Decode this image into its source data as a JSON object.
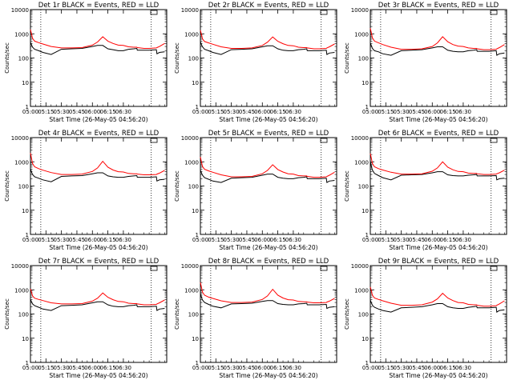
{
  "colors": {
    "events": "#000000",
    "lld": "#ff0000",
    "background": "#ffffff"
  },
  "chart_data": [
    {
      "type": "line",
      "title": "Det 1r BLACK = Events, RED = LLD",
      "xlabel": "Start Time (26-May-05 04:56:20)",
      "ylabel": "Counts/sec",
      "x_ticks": [
        "05:00",
        "05:15",
        "05:30",
        "05:45",
        "06:00",
        "06:15",
        "06:30"
      ],
      "y_ticks": [
        "1",
        "10",
        "100",
        "1000",
        "10000"
      ],
      "ylim": [
        1,
        10000
      ],
      "yscale": "log",
      "x_minutes": [
        0,
        1,
        2,
        4,
        8,
        12,
        20,
        30,
        40,
        50,
        60,
        65,
        70,
        75,
        80,
        85,
        90,
        95,
        100,
        103,
        103.5,
        110,
        115,
        122,
        122.5,
        125,
        130
      ],
      "series": [
        {
          "name": "BLACK = Events",
          "values": [
            450,
            350,
            280,
            230,
            200,
            170,
            140,
            230,
            240,
            250,
            300,
            330,
            330,
            240,
            220,
            200,
            200,
            230,
            240,
            250,
            210,
            210,
            210,
            220,
            150,
            170,
            180
          ]
        },
        {
          "name": "RED = LLD",
          "values": [
            1500,
            1000,
            650,
            500,
            430,
            380,
            300,
            260,
            260,
            270,
            340,
            460,
            760,
            500,
            400,
            340,
            330,
            290,
            280,
            280,
            270,
            250,
            250,
            260,
            270,
            300,
            400
          ]
        }
      ]
    },
    {
      "type": "line",
      "title": "Det 2r BLACK = Events, RED = LLD",
      "xlabel": "Start Time (26-May-05 04:56:20)",
      "ylabel": "Counts/sec",
      "x_ticks": [
        "05:00",
        "05:15",
        "05:30",
        "05:45",
        "06:00",
        "06:15",
        "06:30"
      ],
      "y_ticks": [
        "1",
        "10",
        "100",
        "1000",
        "10000"
      ],
      "ylim": [
        1,
        10000
      ],
      "yscale": "log",
      "x_minutes": [
        0,
        1,
        2,
        4,
        8,
        12,
        20,
        30,
        40,
        50,
        60,
        65,
        70,
        75,
        80,
        85,
        90,
        95,
        100,
        103,
        103.5,
        110,
        115,
        122,
        122.5,
        125,
        130
      ],
      "series": [
        {
          "name": "BLACK = Events",
          "values": [
            480,
            360,
            290,
            230,
            200,
            170,
            140,
            220,
            230,
            240,
            290,
            320,
            320,
            240,
            210,
            200,
            200,
            220,
            230,
            240,
            200,
            200,
            200,
            210,
            140,
            160,
            170
          ]
        },
        {
          "name": "RED = LLD",
          "values": [
            1400,
            950,
            620,
            480,
            420,
            370,
            290,
            250,
            250,
            260,
            330,
            450,
            740,
            490,
            390,
            330,
            320,
            280,
            270,
            270,
            260,
            240,
            240,
            250,
            260,
            290,
            380
          ]
        }
      ]
    },
    {
      "type": "line",
      "title": "Det 3r BLACK = Events, RED = LLD",
      "xlabel": "Start Time (26-May-05 04:56:20)",
      "ylabel": "Counts/sec",
      "x_ticks": [
        "05:00",
        "05:15",
        "05:30",
        "05:45",
        "06:00",
        "06:15",
        "06:30"
      ],
      "y_ticks": [
        "1",
        "10",
        "100",
        "1000",
        "10000"
      ],
      "ylim": [
        1,
        10000
      ],
      "yscale": "log",
      "x_minutes": [
        0,
        1,
        2,
        4,
        8,
        12,
        20,
        30,
        40,
        50,
        60,
        65,
        70,
        75,
        80,
        85,
        90,
        95,
        100,
        103,
        103.5,
        110,
        115,
        122,
        122.5,
        125,
        130
      ],
      "series": [
        {
          "name": "BLACK = Events",
          "values": [
            420,
            320,
            250,
            200,
            180,
            150,
            130,
            200,
            210,
            220,
            260,
            290,
            290,
            210,
            190,
            180,
            180,
            200,
            210,
            220,
            190,
            190,
            190,
            200,
            130,
            150,
            160
          ]
        },
        {
          "name": "RED = LLD",
          "values": [
            1700,
            1100,
            680,
            500,
            420,
            360,
            280,
            230,
            230,
            240,
            300,
            420,
            760,
            470,
            360,
            310,
            300,
            260,
            250,
            250,
            240,
            220,
            220,
            230,
            240,
            270,
            360
          ]
        }
      ]
    },
    {
      "type": "line",
      "title": "Det 4r BLACK = Events, RED = LLD",
      "xlabel": "Start Time (26-May-05 04:56:20)",
      "ylabel": "Counts/sec",
      "x_ticks": [
        "05:00",
        "05:15",
        "05:30",
        "05:45",
        "06:00",
        "06:15",
        "06:30"
      ],
      "y_ticks": [
        "1",
        "10",
        "100",
        "1000",
        "10000"
      ],
      "ylim": [
        1,
        10000
      ],
      "yscale": "log",
      "x_minutes": [
        0,
        1,
        2,
        4,
        8,
        12,
        20,
        30,
        40,
        50,
        60,
        65,
        70,
        75,
        80,
        85,
        90,
        95,
        100,
        103,
        103.5,
        110,
        115,
        122,
        122.5,
        125,
        130
      ],
      "series": [
        {
          "name": "BLACK = Events",
          "values": [
            520,
            380,
            300,
            240,
            210,
            180,
            150,
            250,
            260,
            270,
            320,
            350,
            350,
            260,
            240,
            230,
            230,
            250,
            260,
            270,
            230,
            230,
            230,
            240,
            160,
            180,
            190
          ]
        },
        {
          "name": "RED = LLD",
          "values": [
            2300,
            1400,
            850,
            620,
            520,
            450,
            360,
            300,
            300,
            310,
            400,
            560,
            1050,
            600,
            460,
            390,
            380,
            330,
            320,
            320,
            310,
            290,
            290,
            300,
            310,
            340,
            440
          ]
        }
      ]
    },
    {
      "type": "line",
      "title": "Det 5r BLACK = Events, RED = LLD",
      "xlabel": "Start Time (26-May-05 04:56:20)",
      "ylabel": "Counts/sec",
      "x_ticks": [
        "05:00",
        "05:15",
        "05:30",
        "05:45",
        "06:00",
        "06:15",
        "06:30"
      ],
      "y_ticks": [
        "1",
        "10",
        "100",
        "1000",
        "10000"
      ],
      "ylim": [
        1,
        10000
      ],
      "yscale": "log",
      "x_minutes": [
        0,
        1,
        2,
        4,
        8,
        12,
        20,
        30,
        40,
        50,
        60,
        65,
        70,
        75,
        80,
        85,
        90,
        95,
        100,
        103,
        103.5,
        110,
        115,
        122,
        122.5,
        125,
        130
      ],
      "series": [
        {
          "name": "BLACK = Events",
          "values": [
            460,
            350,
            280,
            220,
            190,
            160,
            140,
            210,
            220,
            230,
            280,
            310,
            310,
            230,
            210,
            200,
            200,
            220,
            230,
            240,
            200,
            200,
            200,
            210,
            140,
            160,
            170
          ]
        },
        {
          "name": "RED = LLD",
          "values": [
            1600,
            1000,
            640,
            490,
            420,
            370,
            290,
            240,
            240,
            250,
            320,
            440,
            760,
            480,
            380,
            320,
            310,
            270,
            260,
            260,
            250,
            230,
            230,
            240,
            250,
            280,
            370
          ]
        }
      ]
    },
    {
      "type": "line",
      "title": "Det 6r BLACK = Events, RED = LLD",
      "xlabel": "Start Time (26-May-05 04:56:20)",
      "ylabel": "Counts/sec",
      "x_ticks": [
        "05:00",
        "05:15",
        "05:30",
        "05:45",
        "06:00",
        "06:15",
        "06:30"
      ],
      "y_ticks": [
        "1",
        "10",
        "100",
        "1000",
        "10000"
      ],
      "ylim": [
        1,
        10000
      ],
      "yscale": "log",
      "x_minutes": [
        0,
        1,
        2,
        4,
        8,
        12,
        20,
        30,
        40,
        50,
        60,
        65,
        70,
        75,
        80,
        85,
        90,
        95,
        100,
        103,
        103.5,
        110,
        115,
        122,
        122.5,
        125,
        130
      ],
      "series": [
        {
          "name": "BLACK = Events",
          "values": [
            1000,
            650,
            450,
            330,
            270,
            220,
            180,
            280,
            290,
            300,
            350,
            390,
            390,
            290,
            270,
            260,
            260,
            280,
            290,
            300,
            260,
            260,
            260,
            270,
            180,
            200,
            210
          ]
        },
        {
          "name": "RED = LLD",
          "values": [
            2200,
            1400,
            850,
            620,
            520,
            460,
            370,
            310,
            310,
            320,
            410,
            560,
            1000,
            600,
            470,
            400,
            390,
            340,
            330,
            330,
            320,
            300,
            300,
            310,
            320,
            350,
            450
          ]
        }
      ]
    },
    {
      "type": "line",
      "title": "Det 7r BLACK = Events, RED = LLD",
      "xlabel": "Start Time (26-May-05 04:56:20)",
      "ylabel": "Counts/sec",
      "x_ticks": [
        "05:00",
        "05:15",
        "05:30",
        "05:45",
        "06:00",
        "06:15",
        "06:30"
      ],
      "y_ticks": [
        "1",
        "10",
        "100",
        "1000",
        "10000"
      ],
      "ylim": [
        1,
        10000
      ],
      "yscale": "log",
      "x_minutes": [
        0,
        1,
        2,
        4,
        8,
        12,
        20,
        30,
        40,
        50,
        60,
        65,
        70,
        75,
        80,
        85,
        90,
        95,
        100,
        103,
        103.5,
        110,
        115,
        122,
        122.5,
        125,
        130
      ],
      "series": [
        {
          "name": "BLACK = Events",
          "values": [
            400,
            320,
            260,
            220,
            190,
            160,
            140,
            220,
            230,
            240,
            290,
            320,
            320,
            240,
            210,
            200,
            200,
            220,
            230,
            240,
            200,
            200,
            200,
            210,
            140,
            160,
            170
          ]
        },
        {
          "name": "RED = LLD",
          "values": [
            1100,
            800,
            560,
            450,
            400,
            360,
            290,
            260,
            260,
            270,
            340,
            450,
            740,
            490,
            390,
            330,
            320,
            280,
            270,
            270,
            260,
            240,
            240,
            250,
            260,
            290,
            380
          ]
        }
      ]
    },
    {
      "type": "line",
      "title": "Det 8r BLACK = Events, RED = LLD",
      "xlabel": "Start Time (26-May-05 04:56:20)",
      "ylabel": "Counts/sec",
      "x_ticks": [
        "05:00",
        "05:15",
        "05:30",
        "05:45",
        "06:00",
        "06:15",
        "06:30"
      ],
      "y_ticks": [
        "1",
        "10",
        "100",
        "1000",
        "10000"
      ],
      "ylim": [
        1,
        10000
      ],
      "yscale": "log",
      "x_minutes": [
        0,
        1,
        2,
        4,
        8,
        12,
        20,
        30,
        40,
        50,
        60,
        65,
        70,
        75,
        80,
        85,
        90,
        95,
        100,
        103,
        103.5,
        110,
        115,
        122,
        122.5,
        125,
        130
      ],
      "series": [
        {
          "name": "BLACK = Events",
          "values": [
            700,
            500,
            380,
            300,
            250,
            210,
            180,
            260,
            270,
            280,
            330,
            360,
            360,
            270,
            250,
            240,
            240,
            260,
            270,
            280,
            240,
            240,
            240,
            250,
            170,
            190,
            200
          ]
        },
        {
          "name": "RED = LLD",
          "values": [
            2000,
            1300,
            800,
            600,
            500,
            440,
            350,
            300,
            300,
            310,
            400,
            560,
            1050,
            600,
            460,
            390,
            380,
            330,
            320,
            320,
            310,
            290,
            290,
            300,
            310,
            340,
            440
          ]
        }
      ]
    },
    {
      "type": "line",
      "title": "Det 9r BLACK = Events, RED = LLD",
      "xlabel": "Start Time (26-May-05 04:56:20)",
      "ylabel": "Counts/sec",
      "x_ticks": [
        "05:00",
        "05:15",
        "05:30",
        "05:45",
        "06:00",
        "06:15",
        "06:30"
      ],
      "y_ticks": [
        "1",
        "10",
        "100",
        "1000",
        "10000"
      ],
      "ylim": [
        1,
        10000
      ],
      "yscale": "log",
      "x_minutes": [
        0,
        1,
        2,
        4,
        8,
        12,
        20,
        30,
        40,
        50,
        60,
        65,
        70,
        75,
        80,
        85,
        90,
        95,
        100,
        103,
        103.5,
        110,
        115,
        122,
        122.5,
        125,
        130
      ],
      "series": [
        {
          "name": "BLACK = Events",
          "values": [
            380,
            290,
            230,
            190,
            160,
            140,
            120,
            180,
            190,
            200,
            240,
            270,
            270,
            200,
            180,
            170,
            170,
            190,
            200,
            210,
            180,
            180,
            180,
            190,
            120,
            140,
            150
          ]
        },
        {
          "name": "RED = LLD",
          "values": [
            1300,
            900,
            600,
            460,
            400,
            350,
            280,
            230,
            230,
            240,
            310,
            420,
            720,
            460,
            360,
            300,
            290,
            250,
            240,
            240,
            230,
            210,
            210,
            220,
            230,
            260,
            350
          ]
        }
      ]
    }
  ]
}
